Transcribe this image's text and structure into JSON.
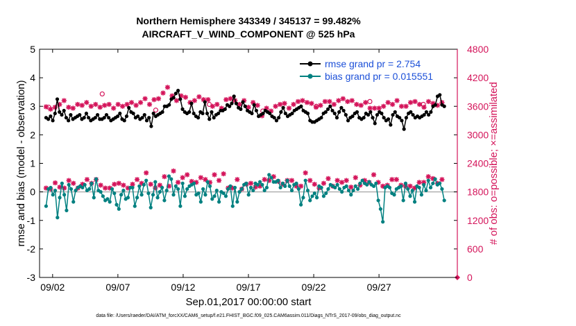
{
  "title_line1": "Northern Hemisphere 343349 / 345137 = 99.482%",
  "title_line2": "AIRCRAFT_V_WIND_COMPONENT @ 525 hPa",
  "footer": "data file: /Users/raeder/DAI/ATM_forcXX/CAM6_setup/f.e21.FHIST_BGC.f09_025.CAM6assim.011/Diags_NTrS_2017-09/obs_diag_output.nc",
  "colors": {
    "rmse": "#000000",
    "bias": "#008080",
    "obs": "#d4145a",
    "zero": "#b0b0b0"
  },
  "chart_data": {
    "type": "line",
    "xlabel": "Sep.01,2017 00:00:00 start",
    "ylabel_left": "rmse and bias (model - observation)",
    "ylabel_right": "# of obs: o=possible; ×=assimilated",
    "x_range_days": [
      0.5,
      32.5
    ],
    "x_ticks": [
      {
        "day": 1.5,
        "label": "09/02"
      },
      {
        "day": 6.5,
        "label": "09/07"
      },
      {
        "day": 11.5,
        "label": "09/12"
      },
      {
        "day": 16.5,
        "label": "09/17"
      },
      {
        "day": 21.5,
        "label": "09/22"
      },
      {
        "day": 26.5,
        "label": "09/27"
      }
    ],
    "ylim_left": [
      -3,
      5
    ],
    "yticks_left": [
      "-3",
      "-2",
      "-1",
      "0",
      "1",
      "2",
      "3",
      "4",
      "5"
    ],
    "ylim_right": [
      0,
      4800
    ],
    "yticks_right": [
      "0",
      "600",
      "1200",
      "1800",
      "2400",
      "3000",
      "3600",
      "4200",
      "4800"
    ],
    "legend": [
      {
        "name": "rmse grand pr = 2.754",
        "series": "rmse"
      },
      {
        "name": "bias grand pr = 0.015551",
        "series": "bias"
      }
    ],
    "series": [
      {
        "name": "rmse",
        "values": [
          2.6,
          2.55,
          2.65,
          2.5,
          2.75,
          3.25,
          2.8,
          2.7,
          2.85,
          2.6,
          2.5,
          2.7,
          2.55,
          2.6,
          2.65,
          2.7,
          2.55,
          2.6,
          2.75,
          2.6,
          2.5,
          2.55,
          2.6,
          2.7,
          2.55,
          2.55,
          2.6,
          2.7,
          2.6,
          2.5,
          2.55,
          2.6,
          2.65,
          2.75,
          2.55,
          2.5,
          2.65,
          2.95,
          2.8,
          2.75,
          2.6,
          2.65,
          2.55,
          2.6,
          2.7,
          2.5,
          2.6,
          2.3,
          2.75,
          2.65,
          2.7,
          2.75,
          2.8,
          3,
          3,
          3.05,
          3.25,
          3.3,
          3.45,
          3.55,
          3.25,
          2.9,
          2.8,
          2.75,
          2.8,
          3.1,
          2.75,
          2.65,
          2.6,
          2.8,
          2.75,
          3.15,
          2.75,
          2.55,
          2.8,
          2.6,
          2.7,
          2.75,
          2.85,
          2.85,
          2.9,
          3.05,
          3,
          3.1,
          3.35,
          3.1,
          2.95,
          2.9,
          3.15,
          3,
          2.85,
          2.8,
          2.75,
          3.05,
          2.85,
          2.65,
          2.7,
          2.75,
          2.85,
          2.8,
          2.75,
          2.65,
          2.6,
          2.5,
          2.6,
          2.8,
          2.95,
          2.75,
          2.65,
          2.7,
          2.75,
          2.85,
          2.9,
          2.95,
          3,
          2.85,
          2.8,
          2.75,
          2.5,
          2.45,
          2.45,
          2.5,
          2.55,
          2.6,
          2.75,
          2.8,
          2.9,
          3,
          2.85,
          2.75,
          2.6,
          2.8,
          2.95,
          2.85,
          2.7,
          2.5,
          2.6,
          2.65,
          2.75,
          2.8,
          2.6,
          2.55,
          2.6,
          2.75,
          2.7,
          2.8,
          2.6,
          2.4,
          2.7,
          2.8,
          2.75,
          2.6,
          2.5,
          2.55,
          2.35,
          2.7,
          2.8,
          2.65,
          2.6,
          2.5,
          2.2,
          2.6,
          2.75,
          2.8,
          2.7,
          2.6,
          2.65,
          2.6,
          2.65,
          2.7,
          2.8,
          2.7,
          2.8,
          3.0,
          3.05,
          3.35,
          3.4,
          3.05,
          3.0
        ]
      },
      {
        "name": "bias",
        "values": [
          -0.5,
          0.1,
          0.15,
          -0.1,
          0.05,
          -0.9,
          -0.2,
          0.3,
          -0.1,
          -0.65,
          0.25,
          0.1,
          -0.35,
          0.05,
          0.15,
          0.2,
          0.15,
          0.25,
          0.05,
          0.1,
          0.3,
          -0.2,
          0.45,
          0.05,
          0,
          -0.15,
          -0.3,
          -0.25,
          -0.35,
          0.1,
          -0.05,
          -0.45,
          -0.6,
          -0.1,
          0.05,
          -0.25,
          -0.2,
          0.15,
          0.15,
          -0.5,
          -0.2,
          0.2,
          -0.1,
          0.25,
          0.4,
          -0.05,
          -0.55,
          -0.1,
          0.35,
          -0.2,
          0,
          0.15,
          -0.3,
          0.05,
          0.55,
          0.45,
          -0.1,
          0.2,
          0.1,
          -0.5,
          0.3,
          -0.15,
          0.1,
          0.2,
          0.25,
          0.3,
          -0.1,
          -0.05,
          -0.35,
          0.1,
          -0.1,
          0.35,
          0.2,
          -0.25,
          -0.15,
          0.05,
          -0.35,
          0,
          -0.05,
          -0.15,
          0.1,
          0.2,
          -0.5,
          0.15,
          -0.35,
          0,
          0.1,
          0.25,
          0.3,
          -0.1,
          0.15,
          0.05,
          0.3,
          0.25,
          0.35,
          0.25,
          0.05,
          0.15,
          0.6,
          0.5,
          0.35,
          0.35,
          0.4,
          0.15,
          0.3,
          0.2,
          0.4,
          0.2,
          0.05,
          0.25,
          0.3,
          0.1,
          -0.45,
          -0.2,
          0.4,
          0.05,
          -0.3,
          -0.15,
          -0.05,
          -0.2,
          0.2,
          0.15,
          -0.15,
          -0.05,
          0.1,
          0.25,
          0.2,
          0.15,
          0.25,
          0.1,
          0,
          0.15,
          0.2,
          0.05,
          -0.1,
          0.05,
          0.2,
          0.1,
          0.3,
          0.4,
          0.3,
          0.25,
          0.35,
          0.25,
          0.2,
          0.3,
          -0.3,
          -0.6,
          -1.05,
          0.15,
          0.2,
          0.15,
          -0.05,
          -0.1,
          0.1,
          0.15,
          0.2,
          -0.3,
          0.3,
          0.1,
          -0.15,
          0.05,
          -0.35,
          0.2,
          0.15,
          -0.1,
          0.25,
          0.05,
          0.4,
          0.15,
          0.3,
          0.45,
          0.25,
          0.3,
          0.1,
          -0.3
        ]
      },
      {
        "name": "obs_assimilated",
        "values": [
          3590,
          3560,
          3540,
          3510,
          3580,
          3840,
          3640,
          3660,
          3720,
          3600,
          3580,
          3620,
          3560,
          3660,
          3640,
          3740,
          3620,
          3620,
          3680,
          3580,
          3600,
          3580,
          3640,
          3660,
          3580,
          3600,
          3620,
          3700,
          3640,
          3560,
          3560,
          3620,
          3640,
          3700,
          3600,
          3580,
          3640,
          3780,
          3680,
          3700,
          3620,
          3640,
          3680,
          3720,
          3760,
          3680,
          3640,
          3700,
          3740,
          3800,
          3760,
          3820,
          3880,
          3900,
          4000,
          4020,
          3820,
          3760,
          3720,
          3650,
          3820,
          3860,
          3790,
          3740,
          3680,
          3600,
          3720,
          3760,
          3800,
          3760,
          3740,
          3840,
          3740,
          3680,
          3600,
          3700,
          3640,
          3620,
          3560,
          3700,
          3740,
          3780,
          3760,
          3720,
          3720,
          3680,
          3640,
          3640,
          3720,
          3640,
          3580,
          3640,
          3680,
          3680,
          3620,
          3360,
          3400,
          3480,
          3560,
          3600,
          3500,
          3540,
          3600,
          3600,
          3640,
          3620,
          3660,
          3600,
          3560,
          3580,
          3640,
          3680,
          3700,
          3700,
          3720,
          3740,
          3680,
          3740,
          3660,
          3600,
          3580,
          3600,
          3620,
          3640,
          3700,
          3720,
          3700,
          3680,
          3640,
          3680,
          3720,
          3740,
          3760,
          3740,
          3700,
          3680,
          3720,
          3740,
          3640,
          3600,
          3620,
          3700,
          3680,
          3600,
          3560,
          3600,
          3560,
          3620,
          3560,
          3520,
          3600,
          3620,
          3680,
          3700,
          3640,
          3680,
          3720,
          3660,
          3600,
          3560,
          3600,
          3640,
          3680,
          3700,
          3700,
          3660,
          3640,
          3620,
          3580,
          3640,
          3700,
          3760,
          3660,
          3640,
          3620,
          3640,
          3680,
          3640
        ]
      },
      {
        "name": "obs_assimilated_low",
        "values": [
          1880,
          1820,
          1860,
          1940,
          1990,
          2060,
          1900,
          1820,
          1880,
          1960,
          2040,
          2000,
          1980,
          1900,
          1880,
          1900,
          1960,
          2020,
          2060,
          2000,
          1980,
          2040,
          2060,
          2000,
          1940,
          1900,
          1880,
          1860,
          1880,
          1920,
          1960,
          2000,
          1980,
          1960,
          1940,
          1920,
          1880,
          1900,
          1960,
          2040,
          2060,
          2000,
          1980,
          2040,
          2200,
          2060,
          1960,
          1920,
          1880,
          1900,
          1940,
          1980,
          2120,
          2040,
          1920,
          2160,
          2240,
          1980,
          2000,
          2060,
          2100,
          2200,
          2160,
          1980,
          2020,
          2080,
          2000,
          2060,
          2100,
          2120,
          2060,
          2000,
          2000,
          2100,
          2160,
          2080,
          2040,
          2100,
          2180,
          2060,
          1880,
          2000,
          1880,
          1960,
          2060,
          1920,
          1860,
          1900,
          1960,
          2020,
          1980,
          1940,
          1900,
          1880,
          1920,
          1980,
          2060,
          1960,
          2040,
          2100,
          2120,
          2080,
          2020,
          2000,
          1960,
          2020,
          2040,
          2160,
          2040,
          1960,
          1920,
          1900,
          1920,
          1940,
          2200,
          2060,
          2040,
          2020,
          1960,
          1900,
          1880,
          1920,
          1980,
          2040,
          2080,
          1960,
          1920,
          1980,
          2040,
          1960,
          2000,
          2080,
          2040,
          1960,
          1900,
          1980,
          2100,
          2060,
          1940,
          1960,
          2040,
          2080,
          2000,
          2060,
          2160,
          2100,
          2000,
          1980,
          1920,
          1880,
          1940,
          2000,
          2060,
          2120,
          2060,
          2000,
          1940,
          1880,
          1920,
          1960,
          1920,
          1940,
          1880,
          1980,
          2000,
          1960,
          2000,
          2020,
          2120,
          2140,
          2080,
          2000,
          1980,
          2040,
          2060,
          2040
        ]
      },
      {
        "name": "obs_possible_max",
        "values": [
          3580,
          3860,
          3520,
          3640,
          3500,
          3600,
          3700,
          3640
        ]
      }
    ]
  }
}
